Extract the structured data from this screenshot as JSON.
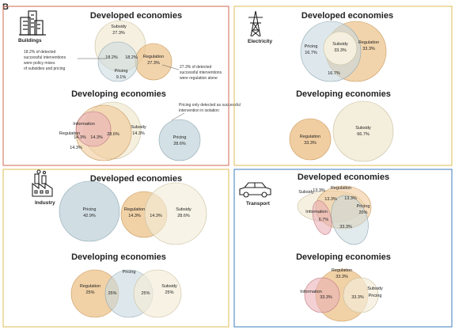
{
  "figure_label": "B",
  "colors": {
    "pricing": "#c8d8df",
    "subsidy": "#f3ecd8",
    "regulation": "#eec590",
    "information": "#eab0b8",
    "buildings_border": "#d9826f",
    "electricity_border": "#e3c870",
    "industry_border": "#e3c870",
    "transport_border": "#5d93c7"
  },
  "panels": {
    "buildings": {
      "sector": "Buildings",
      "icon": "buildings-icon",
      "developed_title": "Developed economies",
      "developed": {
        "subsidy_label": "Subsidy",
        "subsidy_value": "27.3%",
        "overlap_left": "18.2%",
        "overlap_right": "18.2%",
        "regulation_label": "Regulation",
        "regulation_value": "27.3%",
        "pricing_label": "Pricing",
        "pricing_value": "9.1%"
      },
      "note_left": [
        "18.2% of detected",
        "successful interventions",
        "were policy mixes",
        "of subsidies and pricing"
      ],
      "note_right": [
        "27.3% of detected",
        "successful interventions",
        "were regulation alone"
      ],
      "developing_title": "Developing economies",
      "developing": {
        "information_label": "Information",
        "regulation_label": "Regulation",
        "regulation_value": "14.3%",
        "overlap_a": "14.3%",
        "center": "28.6%",
        "subsidy_label": "Subsidy",
        "subsidy_value": "14.3%",
        "bottom_value": "14.3%",
        "pricing_label": "Pricing",
        "pricing_value": "28.6%"
      },
      "note_pricing": [
        "Pricing only detected as successful",
        "intervention in isolation"
      ]
    },
    "electricity": {
      "sector": "Electricity",
      "icon": "power-tower-icon",
      "developed_title": "Developed economies",
      "developed": {
        "pricing_label": "Pricing",
        "pricing_value": "16.7%",
        "subsidy_label": "Subsidy",
        "subsidy_value": "33.3%",
        "regulation_label": "Regulation",
        "regulation_value": "33.3%",
        "overlap_value": "16.7%"
      },
      "developing_title": "Developing economies",
      "developing": {
        "regulation_label": "Regulation",
        "regulation_value": "33.3%",
        "subsidy_label": "Subsidy",
        "subsidy_value": "66.7%"
      }
    },
    "industry": {
      "sector": "Industry",
      "icon": "factory-icon",
      "developed_title": "Developed economies",
      "developed": {
        "pricing_label": "Pricing",
        "pricing_value": "42.9%",
        "regulation_label": "Regulation",
        "regulation_value": "14.3%",
        "overlap_value": "14.3%",
        "subsidy_label": "Subsidy",
        "subsidy_value": "28.6%"
      },
      "developing_title": "Developing economies",
      "developing": {
        "regulation_label": "Regulation",
        "regulation_value": "25%",
        "pricing_label": "Pricing",
        "overlap_a": "25%",
        "overlap_b": "25%",
        "subsidy_label": "Subsidy",
        "subsidy_value": "25%"
      }
    },
    "transport": {
      "sector": "Transport",
      "icon": "car-icon",
      "developed_title": "Developed economies",
      "developed": {
        "subsidy_label": "Subsidy",
        "top_value": "13.3%",
        "regulation_label": "Regulation",
        "value_a": "13.3%",
        "value_b": "13.3%",
        "information_label": "Information",
        "info_value": "6.7%",
        "pricing_label": "Pricing",
        "pricing_value": "20%",
        "bottom_value": "33.3%"
      },
      "developing_title": "Developing economies",
      "developing": {
        "regulation_label": "Regulation",
        "regulation_value": "33.3%",
        "information_label": "Information",
        "info_value": "33.3%",
        "center_value": "33.3%",
        "subsidy_label": "Subsidy",
        "pricing_label": "Pricing"
      }
    }
  }
}
